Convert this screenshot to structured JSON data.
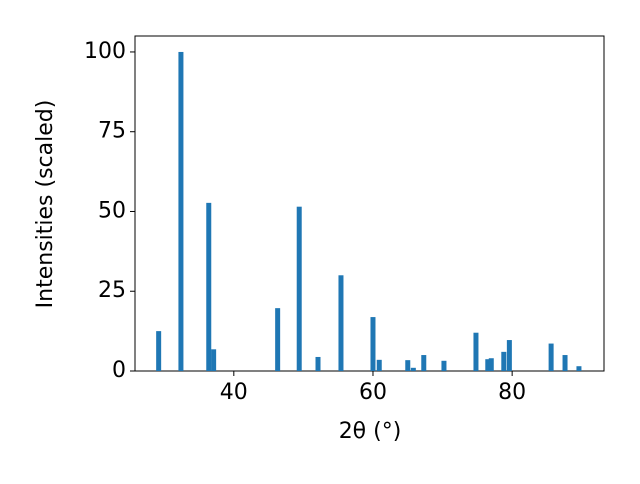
{
  "chart_data": {
    "type": "bar",
    "x_label": "2θ (°)",
    "y_label": "Intensities (scaled)",
    "x": [
      29.2,
      32.4,
      36.4,
      37.1,
      46.3,
      49.4,
      52.1,
      55.4,
      60.0,
      60.9,
      65.0,
      65.8,
      67.3,
      70.2,
      74.8,
      76.5,
      77.0,
      78.8,
      79.6,
      85.6,
      87.6,
      89.6
    ],
    "values": [
      12.5,
      100,
      52.7,
      6.8,
      19.7,
      51.5,
      4.4,
      30,
      16.9,
      3.5,
      3.4,
      1.0,
      5.0,
      3.2,
      12,
      3.7,
      4.0,
      6.0,
      9.7,
      8.6,
      5.0,
      1.5
    ],
    "color": "#1f77b4",
    "xlim": [
      25.8,
      93.2
    ],
    "ylim": [
      0,
      105
    ],
    "xticks": [
      40,
      60,
      80
    ],
    "yticks": [
      0,
      25,
      50,
      75,
      100
    ],
    "grid": false
  }
}
